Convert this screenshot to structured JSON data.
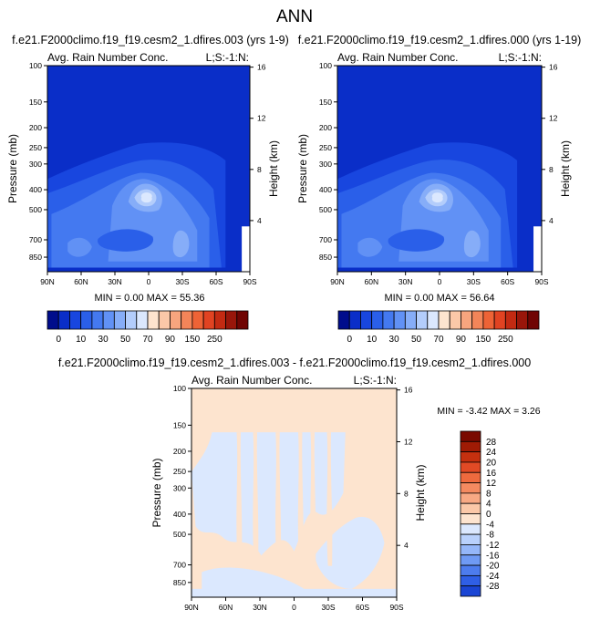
{
  "page": {
    "title": "ANN"
  },
  "colors": {
    "blues": [
      "#000d8c",
      "#0a2ec8",
      "#1846df",
      "#2a5fe9",
      "#4479f0",
      "#6191f5",
      "#86adf8",
      "#b3cdfb",
      "#dbe8fe"
    ],
    "neutral": "#fde4cf",
    "reds": [
      "#fbc8a8",
      "#f7a57e",
      "#f38559",
      "#ee6336",
      "#e14322",
      "#c32a12",
      "#99160a",
      "#700503"
    ],
    "diff_blues": [
      "#dbe8fe",
      "#b9d1fc",
      "#95b7f9",
      "#6f9af4",
      "#4d7cee",
      "#2f5fe6",
      "#1a45d4",
      "#0d2fb8",
      "#04178f",
      "#000a6a"
    ],
    "diff_reds": [
      "#fde4cf",
      "#fbc8a8",
      "#f8a984",
      "#f48a60",
      "#ee6a3e",
      "#e14a25",
      "#c5300f",
      "#a01b05",
      "#7a0a00"
    ]
  },
  "chart_data": [
    {
      "type": "heatmap",
      "title": "f.e21.F2000climo.f19_f19.cesm2_1.dfires.003 (yrs 1-9)",
      "subtitle_left": "Avg. Rain Number Conc.",
      "subtitle_right": "L;S:-1:N:",
      "xlabel": "",
      "ylabel": "Pressure (mb)",
      "ylabel_right": "Height (km)",
      "x_ticks": [
        "90N",
        "60N",
        "30N",
        "0",
        "30S",
        "60S",
        "90S"
      ],
      "x_tick_values": [
        90,
        60,
        30,
        0,
        -30,
        -60,
        -90
      ],
      "y_ticks": [
        "100",
        "150",
        "200",
        "250",
        "300",
        "400",
        "500",
        "700",
        "850"
      ],
      "y_tick_values": [
        100,
        150,
        200,
        250,
        300,
        400,
        500,
        700,
        850
      ],
      "ylim": [
        1000,
        100
      ],
      "height_ticks": [
        "16",
        "12",
        "8",
        "4"
      ],
      "height_tick_values": [
        16,
        12,
        8,
        4
      ],
      "stats": "MIN =   0.00   MAX =  55.36",
      "min": 0.0,
      "max": 55.36
    },
    {
      "type": "heatmap",
      "title": "f.e21.F2000climo.f19_f19.cesm2_1.dfires.000 (yrs 1-19)",
      "subtitle_left": "Avg. Rain Number Conc.",
      "subtitle_right": "L;S:-1:N:",
      "xlabel": "",
      "ylabel": "Pressure (mb)",
      "ylabel_right": "Height (km)",
      "x_ticks": [
        "90N",
        "60N",
        "30N",
        "0",
        "30S",
        "60S",
        "90S"
      ],
      "x_tick_values": [
        90,
        60,
        30,
        0,
        -30,
        -60,
        -90
      ],
      "y_ticks": [
        "100",
        "150",
        "200",
        "250",
        "300",
        "400",
        "500",
        "700",
        "850"
      ],
      "y_tick_values": [
        100,
        150,
        200,
        250,
        300,
        400,
        500,
        700,
        850
      ],
      "ylim": [
        1000,
        100
      ],
      "height_ticks": [
        "16",
        "12",
        "8",
        "4"
      ],
      "height_tick_values": [
        16,
        12,
        8,
        4
      ],
      "stats": "MIN =   0.00   MAX =  56.64",
      "min": 0.0,
      "max": 56.64
    },
    {
      "type": "heatmap",
      "title": "f.e21.F2000climo.f19_f19.cesm2_1.dfires.003 - f.e21.F2000climo.f19_f19.cesm2_1.dfires.000",
      "subtitle_left": "Avg. Rain Number Conc.",
      "subtitle_right": "L;S:-1:N:",
      "xlabel": "",
      "ylabel": "Pressure (mb)",
      "ylabel_right": "Height (km)",
      "x_ticks": [
        "90N",
        "60N",
        "30N",
        "0",
        "30S",
        "60S",
        "90S"
      ],
      "x_tick_values": [
        90,
        60,
        30,
        0,
        -30,
        -60,
        -90
      ],
      "y_ticks": [
        "100",
        "150",
        "200",
        "250",
        "300",
        "400",
        "500",
        "700",
        "850"
      ],
      "y_tick_values": [
        100,
        150,
        200,
        250,
        300,
        400,
        500,
        700,
        850
      ],
      "ylim": [
        1000,
        100
      ],
      "height_ticks": [
        "16",
        "12",
        "8",
        "4"
      ],
      "height_tick_values": [
        16,
        12,
        8,
        4
      ],
      "stats": "MIN =  -3.42   MAX =   3.26",
      "min": -3.42,
      "max": 3.26
    }
  ],
  "colorbar_abs": {
    "labels": [
      "0",
      "10",
      "30",
      "50",
      "70",
      "90",
      "150",
      "250"
    ]
  },
  "colorbar_diff": {
    "labels": [
      "28",
      "24",
      "20",
      "16",
      "12",
      "8",
      "4",
      "0",
      "-4",
      "-8",
      "-12",
      "-16",
      "-20",
      "-24",
      "-28"
    ]
  }
}
